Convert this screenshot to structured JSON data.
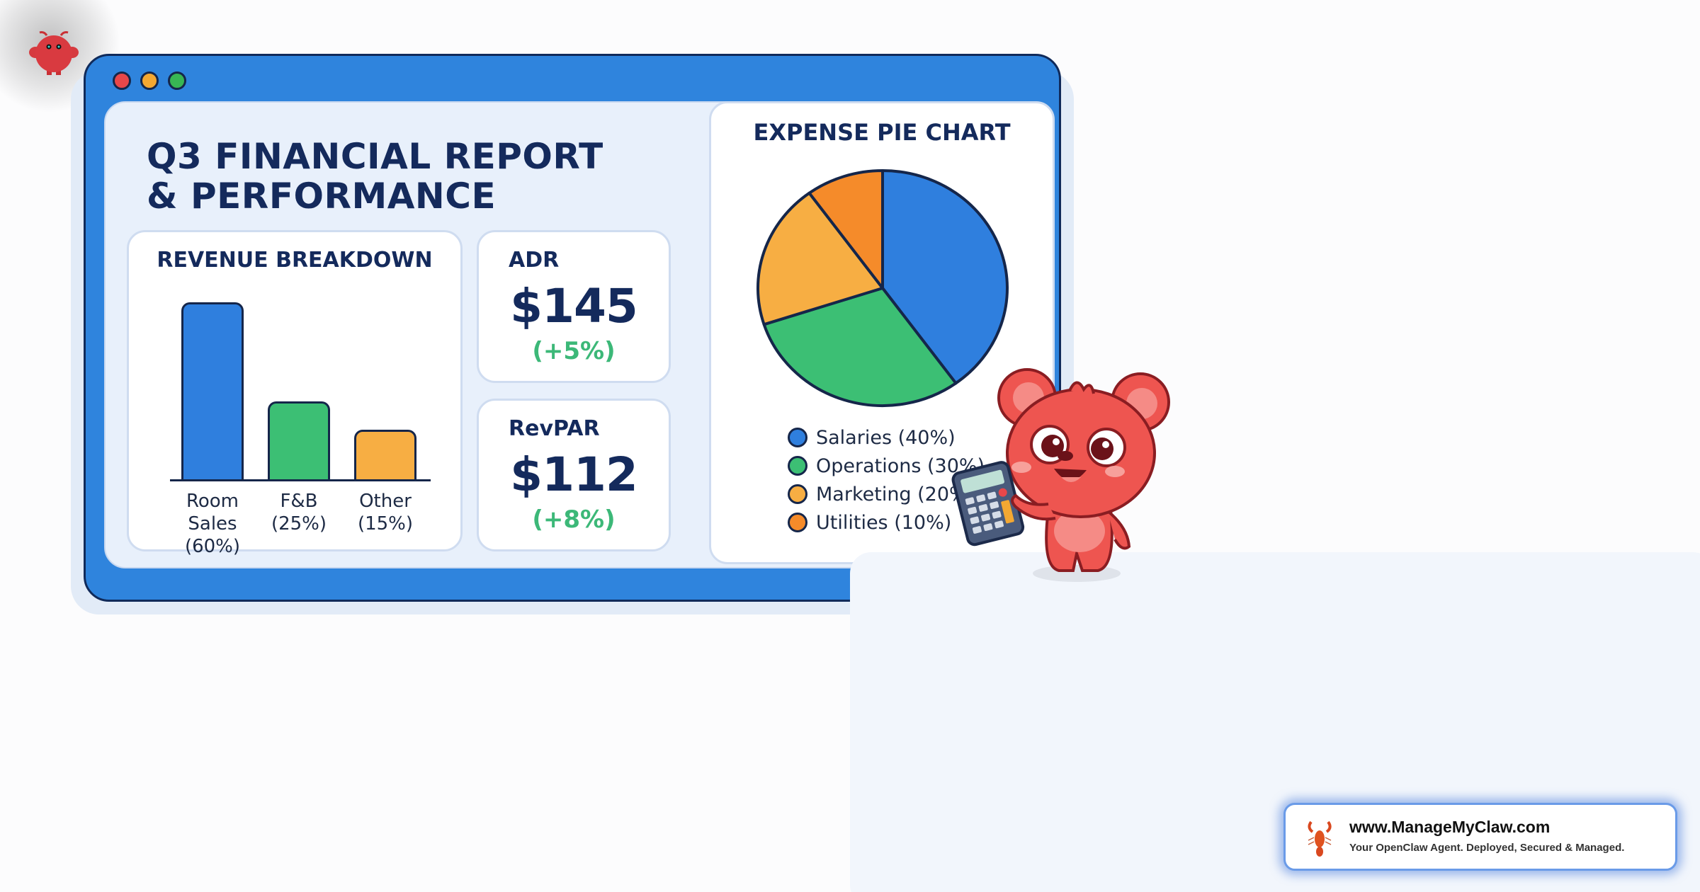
{
  "window": {
    "controls": [
      "close",
      "minimize",
      "maximize"
    ],
    "colors": {
      "frame": "#2f84dd",
      "close": "#e8474a",
      "minimize": "#f4a832",
      "maximize": "#38b654"
    }
  },
  "report": {
    "title_line1": "Q3 FINANCIAL REPORT",
    "title_line2": "& PERFORMANCE"
  },
  "revenue": {
    "title": "REVENUE BREAKDOWN",
    "bars": [
      {
        "name": "Room Sales",
        "pct_label": "(60%)",
        "value": 60,
        "color": "#2f7fde"
      },
      {
        "name": "F&B",
        "pct_label": "(25%)",
        "value": 25,
        "color": "#3cbf74"
      },
      {
        "name": "Other",
        "pct_label": "(15%)",
        "value": 15,
        "color": "#f7ae43"
      }
    ]
  },
  "kpis": [
    {
      "label": "ADR",
      "value": "$145",
      "change": "(+5%)"
    },
    {
      "label": "RevPAR",
      "value": "$112",
      "change": "(+8%)"
    }
  ],
  "expenses": {
    "title": "EXPENSE PIE CHART",
    "legend": [
      {
        "label": "Salaries (40%)",
        "value": 40,
        "color": "#2f7fde"
      },
      {
        "label": "Operations (30%)",
        "value": 30,
        "color": "#3cbf74"
      },
      {
        "label": "Marketing (20%)",
        "value": 20,
        "color": "#f7ae43"
      },
      {
        "label": "Utilities (10%)",
        "value": 10,
        "color": "#f58b2a"
      }
    ]
  },
  "mascot": {
    "description": "red bear holding calculator"
  },
  "watermark": {
    "url": "www.ManageMyClaw.com",
    "tagline": "Your OpenClaw Agent. Deployed, Secured & Managed."
  },
  "chart_data": [
    {
      "type": "bar",
      "title": "REVENUE BREAKDOWN",
      "categories": [
        "Room Sales",
        "F&B",
        "Other"
      ],
      "values": [
        60,
        25,
        15
      ],
      "xlabel": "",
      "ylabel": "",
      "unit": "%",
      "grid": false
    },
    {
      "type": "pie",
      "title": "EXPENSE PIE CHART",
      "categories": [
        "Salaries",
        "Operations",
        "Marketing",
        "Utilities"
      ],
      "values": [
        40,
        30,
        20,
        10
      ],
      "unit": "%",
      "legend_position": "bottom"
    }
  ]
}
